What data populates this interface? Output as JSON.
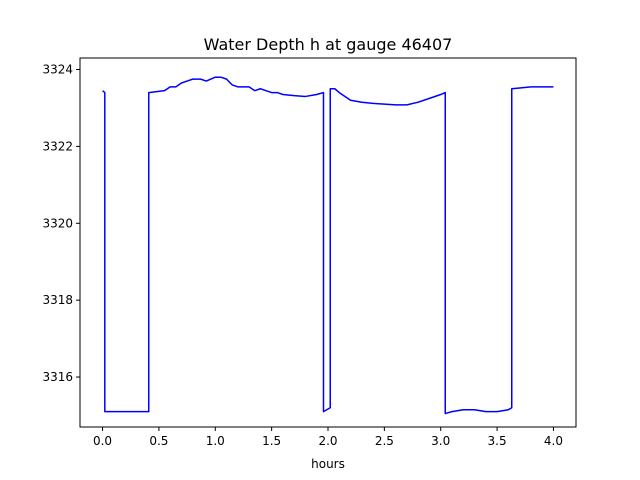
{
  "chart_data": {
    "type": "line",
    "title": "Water Depth h at gauge 46407",
    "xlabel": "hours",
    "ylabel": "",
    "xlim": [
      -0.2,
      4.2
    ],
    "ylim": [
      3314.7,
      3324.3
    ],
    "xticks": [
      0.0,
      0.5,
      1.0,
      1.5,
      2.0,
      2.5,
      3.0,
      3.5,
      4.0
    ],
    "xtick_labels": [
      "0.0",
      "0.5",
      "1.0",
      "1.5",
      "2.0",
      "2.5",
      "3.0",
      "3.5",
      "4.0"
    ],
    "yticks": [
      3316,
      3318,
      3320,
      3322,
      3324
    ],
    "ytick_labels": [
      "3316",
      "3318",
      "3320",
      "3322",
      "3324"
    ],
    "grid": false,
    "color": "#0000ff",
    "series": [
      {
        "x": [
          0.0,
          0.02,
          0.02,
          0.2,
          0.41,
          0.41,
          0.55,
          0.6,
          0.65,
          0.7,
          0.75,
          0.8,
          0.87,
          0.92,
          1.0,
          1.05,
          1.1,
          1.15,
          1.2,
          1.3,
          1.35,
          1.4,
          1.45,
          1.5,
          1.55,
          1.6,
          1.7,
          1.8,
          1.9,
          1.96,
          1.96,
          2.02,
          2.02,
          2.06,
          2.1,
          2.2,
          2.3,
          2.4,
          2.5,
          2.6,
          2.7,
          2.8,
          2.9,
          3.0,
          3.04,
          3.04,
          3.1,
          3.2,
          3.3,
          3.4,
          3.5,
          3.6,
          3.63,
          3.63,
          3.7,
          3.8,
          3.9,
          4.0
        ],
        "y": [
          3323.45,
          3323.4,
          3315.1,
          3315.1,
          3315.1,
          3323.4,
          3323.45,
          3323.55,
          3323.55,
          3323.65,
          3323.7,
          3323.75,
          3323.75,
          3323.7,
          3323.8,
          3323.8,
          3323.75,
          3323.6,
          3323.55,
          3323.55,
          3323.45,
          3323.5,
          3323.45,
          3323.4,
          3323.4,
          3323.35,
          3323.32,
          3323.3,
          3323.35,
          3323.4,
          3315.1,
          3315.2,
          3323.5,
          3323.5,
          3323.4,
          3323.2,
          3323.15,
          3323.12,
          3323.1,
          3323.08,
          3323.08,
          3323.15,
          3323.25,
          3323.35,
          3323.4,
          3315.05,
          3315.1,
          3315.15,
          3315.15,
          3315.1,
          3315.1,
          3315.15,
          3315.2,
          3323.5,
          3323.52,
          3323.55,
          3323.55,
          3323.55
        ]
      }
    ]
  }
}
